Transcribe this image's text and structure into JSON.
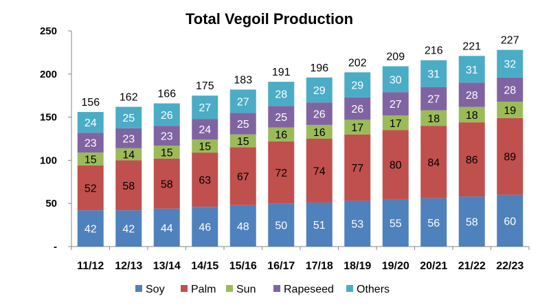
{
  "chart_data": {
    "type": "bar",
    "stacked": true,
    "title": "Total Vegoil Production",
    "categories": [
      "11/12",
      "12/13",
      "13/14",
      "14/15",
      "15/16",
      "16/17",
      "17/18",
      "18/19",
      "19/20",
      "20/21",
      "21/22",
      "22/23"
    ],
    "series": [
      {
        "name": "Soy",
        "color": "#4F81BD",
        "label_color": "#FFFFFF",
        "values": [
          42,
          42,
          44,
          46,
          48,
          50,
          51,
          53,
          55,
          56,
          58,
          60
        ]
      },
      {
        "name": "Palm",
        "color": "#C0504D",
        "label_color": "#000000",
        "values": [
          52,
          58,
          58,
          63,
          67,
          72,
          74,
          77,
          80,
          84,
          86,
          89
        ]
      },
      {
        "name": "Sun",
        "color": "#9BBB59",
        "label_color": "#000000",
        "values": [
          15,
          14,
          15,
          15,
          15,
          16,
          16,
          17,
          17,
          18,
          18,
          19
        ]
      },
      {
        "name": "Rapeseed",
        "color": "#8064A2",
        "label_color": "#FFFFFF",
        "values": [
          23,
          23,
          23,
          24,
          25,
          25,
          26,
          26,
          27,
          27,
          28,
          28
        ]
      },
      {
        "name": "Others",
        "color": "#4BACC6",
        "label_color": "#FFFFFF",
        "values": [
          24,
          25,
          26,
          27,
          27,
          28,
          29,
          29,
          30,
          31,
          31,
          32
        ]
      }
    ],
    "totals": [
      156,
      162,
      166,
      175,
      183,
      191,
      196,
      202,
      209,
      216,
      221,
      227
    ],
    "ylim": [
      0,
      250
    ],
    "yticks": [
      0,
      50,
      100,
      150,
      200,
      250
    ],
    "ytick_labels": [
      "-",
      "50",
      "100",
      "150",
      "200",
      "250"
    ],
    "xlabel": "",
    "ylabel": "",
    "grid": false,
    "legend_position": "bottom"
  }
}
